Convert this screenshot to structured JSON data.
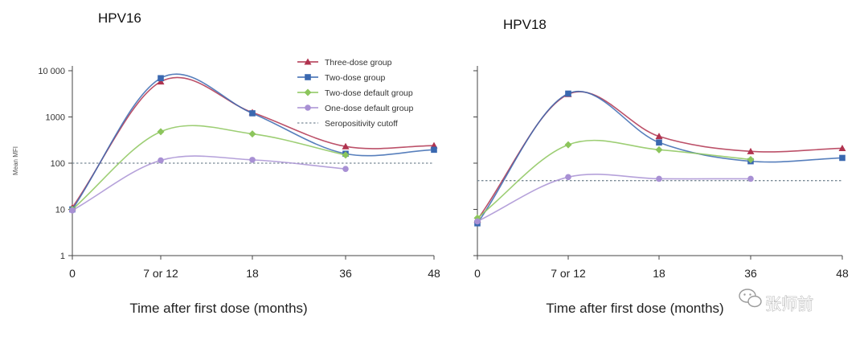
{
  "chart_data": [
    {
      "type": "line",
      "title": "HPV16",
      "xlabel": "Time after first dose (months)",
      "ylabel": "Mean MFI",
      "y_scale": "log",
      "ylim": [
        1,
        10000
      ],
      "y_ticks": [
        "1",
        "10",
        "100",
        "1000",
        "10 000"
      ],
      "x_tick_labels": [
        "0",
        "7 or 12",
        "18",
        "36",
        "48"
      ],
      "cutoff": 100,
      "series": [
        {
          "name": "Three-dose group",
          "color": "#b0334f",
          "marker": "triangle",
          "x": [
            "0",
            "7 or 12",
            "18",
            "36",
            "48"
          ],
          "values": [
            11,
            5800,
            1250,
            230,
            240
          ]
        },
        {
          "name": "Two-dose group",
          "color": "#3a68b0",
          "marker": "square",
          "x": [
            "0",
            "7 or 12",
            "18",
            "36",
            "48"
          ],
          "values": [
            10,
            6900,
            1200,
            160,
            195
          ]
        },
        {
          "name": "Two-dose default group",
          "color": "#8cc55c",
          "marker": "diamond",
          "x": [
            "0",
            "7 or 12",
            "18",
            "36"
          ],
          "values": [
            10,
            480,
            430,
            150
          ]
        },
        {
          "name": "One-dose default group",
          "color": "#a890d4",
          "marker": "circle",
          "x": [
            "0",
            "7 or 12",
            "18",
            "36"
          ],
          "values": [
            9.5,
            115,
            118,
            75
          ]
        }
      ]
    },
    {
      "type": "line",
      "title": "HPV18",
      "xlabel": "Time after first dose (months)",
      "ylabel": "",
      "y_scale": "log",
      "ylim": [
        1,
        10000
      ],
      "x_tick_labels": [
        "0",
        "7 or 12",
        "18",
        "36",
        "48"
      ],
      "cutoff": 42,
      "series": [
        {
          "name": "Three-dose group",
          "color": "#b0334f",
          "marker": "triangle",
          "x": [
            "0",
            "7 or 12",
            "18",
            "36",
            "48"
          ],
          "values": [
            6,
            3100,
            380,
            180,
            210
          ]
        },
        {
          "name": "Two-dose group",
          "color": "#3a68b0",
          "marker": "square",
          "x": [
            "0",
            "7 or 12",
            "18",
            "36",
            "48"
          ],
          "values": [
            5,
            3200,
            280,
            110,
            130
          ]
        },
        {
          "name": "Two-dose default group",
          "color": "#8cc55c",
          "marker": "diamond",
          "x": [
            "0",
            "7 or 12",
            "18",
            "36"
          ],
          "values": [
            6.5,
            250,
            195,
            120
          ]
        },
        {
          "name": "One-dose default group",
          "color": "#a890d4",
          "marker": "circle",
          "x": [
            "0",
            "7 or 12",
            "18",
            "36"
          ],
          "values": [
            5.5,
            50,
            46,
            46
          ]
        }
      ]
    }
  ],
  "legend": {
    "items": [
      {
        "label": "Three-dose group",
        "color": "#b0334f",
        "marker": "triangle"
      },
      {
        "label": "Two-dose group",
        "color": "#3a68b0",
        "marker": "square"
      },
      {
        "label": "Two-dose default group",
        "color": "#8cc55c",
        "marker": "diamond"
      },
      {
        "label": "One-dose default group",
        "color": "#a890d4",
        "marker": "circle"
      },
      {
        "label": "Seropositivity cutoff",
        "color": "#7a8a96",
        "marker": "dotted-line"
      }
    ],
    "placement": "top-right of HPV16 panel"
  },
  "watermark": {
    "text": "张师前",
    "icon": "wechat-icon"
  }
}
